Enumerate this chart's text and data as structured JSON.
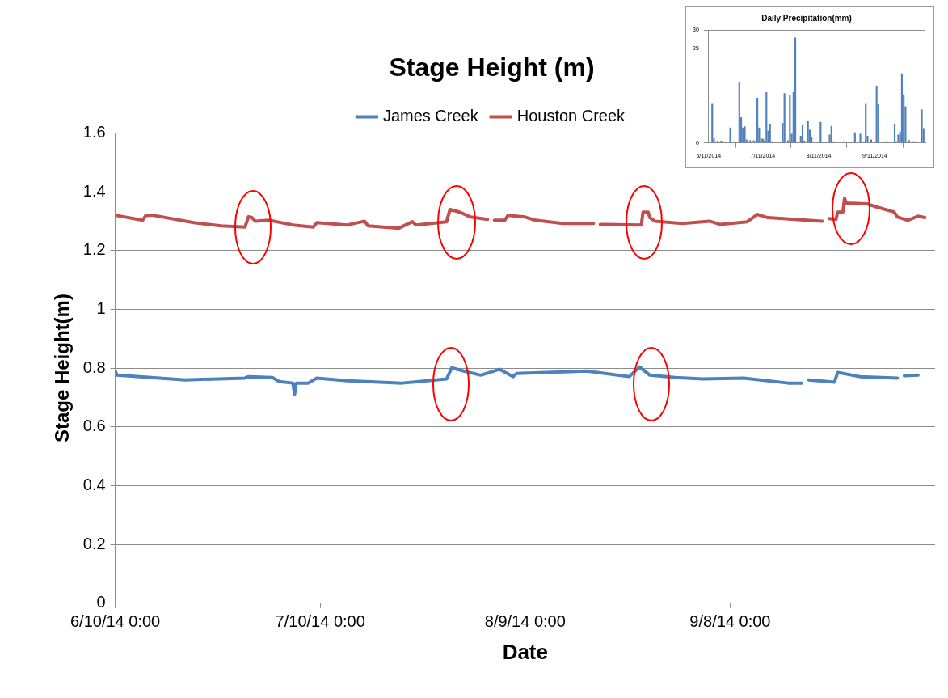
{
  "chart_data": [
    {
      "type": "line",
      "title": "Stage Height (m)",
      "xlabel": "Date",
      "ylabel": "Stage Height(m)",
      "xlim": [
        "2014-06-10T00:00",
        "2014-10-08T00:00"
      ],
      "xticks": [
        {
          "value": "2014-06-10T00:00",
          "label": "6/10/14 0:00"
        },
        {
          "value": "2014-07-10T00:00",
          "label": "7/10/14 0:00"
        },
        {
          "value": "2014-08-09T00:00",
          "label": "8/9/14 0:00"
        },
        {
          "value": "2014-09-08T00:00",
          "label": "9/8/14 0:00"
        }
      ],
      "ylim": [
        0,
        1.6
      ],
      "yticks": [
        0,
        0.2,
        0.4,
        0.6,
        0.8,
        1,
        1.2,
        1.4,
        1.6
      ],
      "grid": "y",
      "legend": "top",
      "marker": "none",
      "line_style": "solid",
      "series": [
        {
          "name": "James Creek",
          "color": "#4f81bd",
          "x": [
            "2014-06-10T00:00",
            "2014-06-10T06:00",
            "2014-06-16T12:00",
            "2014-06-20T06:00",
            "2014-06-29T00:00",
            "2014-06-29T12:00",
            "2014-07-03T00:00",
            "2014-07-04T00:00",
            "2014-07-06T00:00",
            "2014-07-06T06:00",
            "2014-07-06T12:00",
            "2014-07-08T06:00",
            "2014-07-09T12:00",
            "2014-07-14T00:00",
            "2014-07-22T00:00",
            "2014-07-28T12:00",
            "2014-07-29T06:00",
            "2014-07-31T00:00",
            "2014-08-02T12:00",
            "2014-08-05T06:00",
            "2014-08-07T06:00",
            "2014-08-07T18:00",
            "2014-08-18T00:00",
            "2014-08-24T06:00",
            "2014-08-25T18:00",
            "2014-08-27T06:00",
            "2014-08-31T00:00",
            "2014-09-04T00:00",
            "2014-09-10T00:00",
            "2014-09-16T12:00",
            "2014-09-18T12:00",
            "2014-09-19T00:00",
            "2014-09-19T12:00",
            "2014-09-23T06:00",
            "2014-09-23T18:00",
            "2014-09-27T00:00",
            "2014-10-02T12:00",
            "2014-10-02T18:00",
            "2014-10-03T12:00",
            "2014-10-05T12:00"
          ],
          "values": [
            0.79,
            0.776,
            0.766,
            0.76,
            0.766,
            0.771,
            0.768,
            0.754,
            0.749,
            0.71,
            0.749,
            0.749,
            0.766,
            0.757,
            0.749,
            0.763,
            0.801,
            0.79,
            0.776,
            0.796,
            0.771,
            0.782,
            0.79,
            0.771,
            0.804,
            0.776,
            0.768,
            0.763,
            0.766,
            0.749,
            0.749,
            null,
            0.76,
            0.752,
            0.785,
            0.771,
            0.766,
            null,
            0.774,
            0.776
          ]
        },
        {
          "name": "Houston Creek",
          "color": "#c0504d",
          "x": [
            "2014-06-10T00:00",
            "2014-06-14T00:00",
            "2014-06-14T12:00",
            "2014-06-15T12:00",
            "2014-06-21T12:00",
            "2014-06-25T12:00",
            "2014-06-29T00:00",
            "2014-06-29T12:00",
            "2014-06-30T00:00",
            "2014-06-30T12:00",
            "2014-07-02T12:00",
            "2014-07-06T00:00",
            "2014-07-09T00:00",
            "2014-07-09T12:00",
            "2014-07-14T00:00",
            "2014-07-16T12:00",
            "2014-07-17T00:00",
            "2014-07-21T12:00",
            "2014-07-23T12:00",
            "2014-07-24T00:00",
            "2014-07-28T12:00",
            "2014-07-29T00:00",
            "2014-07-30T12:00",
            "2014-08-01T00:00",
            "2014-08-03T12:00",
            "2014-08-04T00:00",
            "2014-08-04T12:00",
            "2014-08-06T00:00",
            "2014-08-06T12:00",
            "2014-08-09T00:00",
            "2014-08-10T12:00",
            "2014-08-14T12:00",
            "2014-08-19T00:00",
            "2014-08-19T12:00",
            "2014-08-20T00:00",
            "2014-08-26T00:00",
            "2014-08-26T06:00",
            "2014-08-27T00:00",
            "2014-08-27T06:00",
            "2014-08-28T00:00",
            "2014-09-01T00:00",
            "2014-09-05T00:00",
            "2014-09-06T12:00",
            "2014-09-10T12:00",
            "2014-09-12T00:00",
            "2014-09-13T12:00",
            "2014-09-21T12:00",
            "2014-09-22T00:00",
            "2014-09-22T12:00",
            "2014-09-23T12:00",
            "2014-09-23T18:00",
            "2014-09-24T12:00",
            "2014-09-24T18:00",
            "2014-09-25T00:00",
            "2014-09-28T00:00",
            "2014-09-29T12:00",
            "2014-10-02T00:00",
            "2014-10-02T12:00",
            "2014-10-04T00:00",
            "2014-10-05T12:00",
            "2014-10-06T12:00"
          ],
          "values": [
            1.32,
            1.303,
            1.32,
            1.32,
            1.295,
            1.284,
            1.28,
            1.315,
            1.312,
            1.3,
            1.303,
            1.287,
            1.28,
            1.295,
            1.287,
            1.3,
            1.284,
            1.276,
            1.298,
            1.287,
            1.298,
            1.34,
            1.33,
            1.314,
            1.306,
            null,
            1.303,
            1.303,
            1.32,
            1.314,
            1.303,
            1.292,
            1.292,
            null,
            1.289,
            1.287,
            1.331,
            1.331,
            1.312,
            1.3,
            1.292,
            1.3,
            1.289,
            1.298,
            1.323,
            1.312,
            1.3,
            null,
            1.309,
            1.306,
            1.331,
            1.331,
            1.378,
            1.362,
            1.359,
            1.348,
            1.331,
            1.314,
            1.303,
            1.317,
            1.312
          ]
        }
      ]
    },
    {
      "type": "bar",
      "title": "Daily Precipitation(mm)",
      "color": "#4f81bd",
      "xlim": [
        "2014-06-11",
        "2014-10-09"
      ],
      "xticks": [
        {
          "value": "2014-06-11",
          "label": "6/11/2014"
        },
        {
          "value": "2014-07-11",
          "label": "7/11/2014"
        },
        {
          "value": "2014-08-11",
          "label": "8/11/2014"
        },
        {
          "value": "2014-09-11",
          "label": "9/11/2014"
        }
      ],
      "ylim": [
        0,
        30
      ],
      "yticks": [
        0,
        25,
        30
      ],
      "grid": "y",
      "x": [
        "2014-06-13",
        "2014-06-14",
        "2014-06-16",
        "2014-06-18",
        "2014-06-23",
        "2014-06-28",
        "2014-06-29",
        "2014-06-30",
        "2014-07-01",
        "2014-07-02",
        "2014-07-04",
        "2014-07-06",
        "2014-07-07",
        "2014-07-08",
        "2014-07-09",
        "2014-07-10",
        "2014-07-11",
        "2014-07-12",
        "2014-07-13",
        "2014-07-14",
        "2014-07-15",
        "2014-07-16",
        "2014-07-22",
        "2014-07-23",
        "2014-07-25",
        "2014-07-26",
        "2014-07-27",
        "2014-07-28",
        "2014-07-29",
        "2014-08-01",
        "2014-08-02",
        "2014-08-03",
        "2014-08-05",
        "2014-08-06",
        "2014-08-07",
        "2014-08-12",
        "2014-08-17",
        "2014-08-18",
        "2014-08-19",
        "2014-08-25",
        "2014-08-31",
        "2014-09-03",
        "2014-09-05",
        "2014-09-06",
        "2014-09-07",
        "2014-09-09",
        "2014-09-12",
        "2014-09-13",
        "2014-09-17",
        "2014-09-22",
        "2014-09-23",
        "2014-09-24",
        "2014-09-25",
        "2014-09-26",
        "2014-09-27",
        "2014-09-28",
        "2014-09-30",
        "2014-10-02",
        "2014-10-03",
        "2014-10-07",
        "2014-10-08"
      ],
      "values": [
        10.5,
        1.1,
        0.5,
        0.5,
        4,
        16,
        6.7,
        4,
        4.3,
        0.8,
        0.6,
        0.6,
        0.3,
        11.9,
        4,
        1.1,
        1,
        0.6,
        13.4,
        3.2,
        5,
        0.3,
        5.2,
        13.1,
        0.6,
        12.5,
        2.3,
        13.4,
        27.9,
        1.8,
        4.7,
        0.5,
        5.8,
        3.4,
        1.5,
        5.5,
        2.1,
        4.4,
        0.3,
        0.3,
        2.7,
        2.3,
        0.3,
        10.5,
        1.8,
        0.8,
        15.1,
        10.2,
        0.3,
        5,
        0.3,
        2.1,
        2.9,
        18.4,
        12.8,
        9.6,
        0.6,
        0.3,
        0.3,
        8.8,
        3.8
      ]
    }
  ]
}
